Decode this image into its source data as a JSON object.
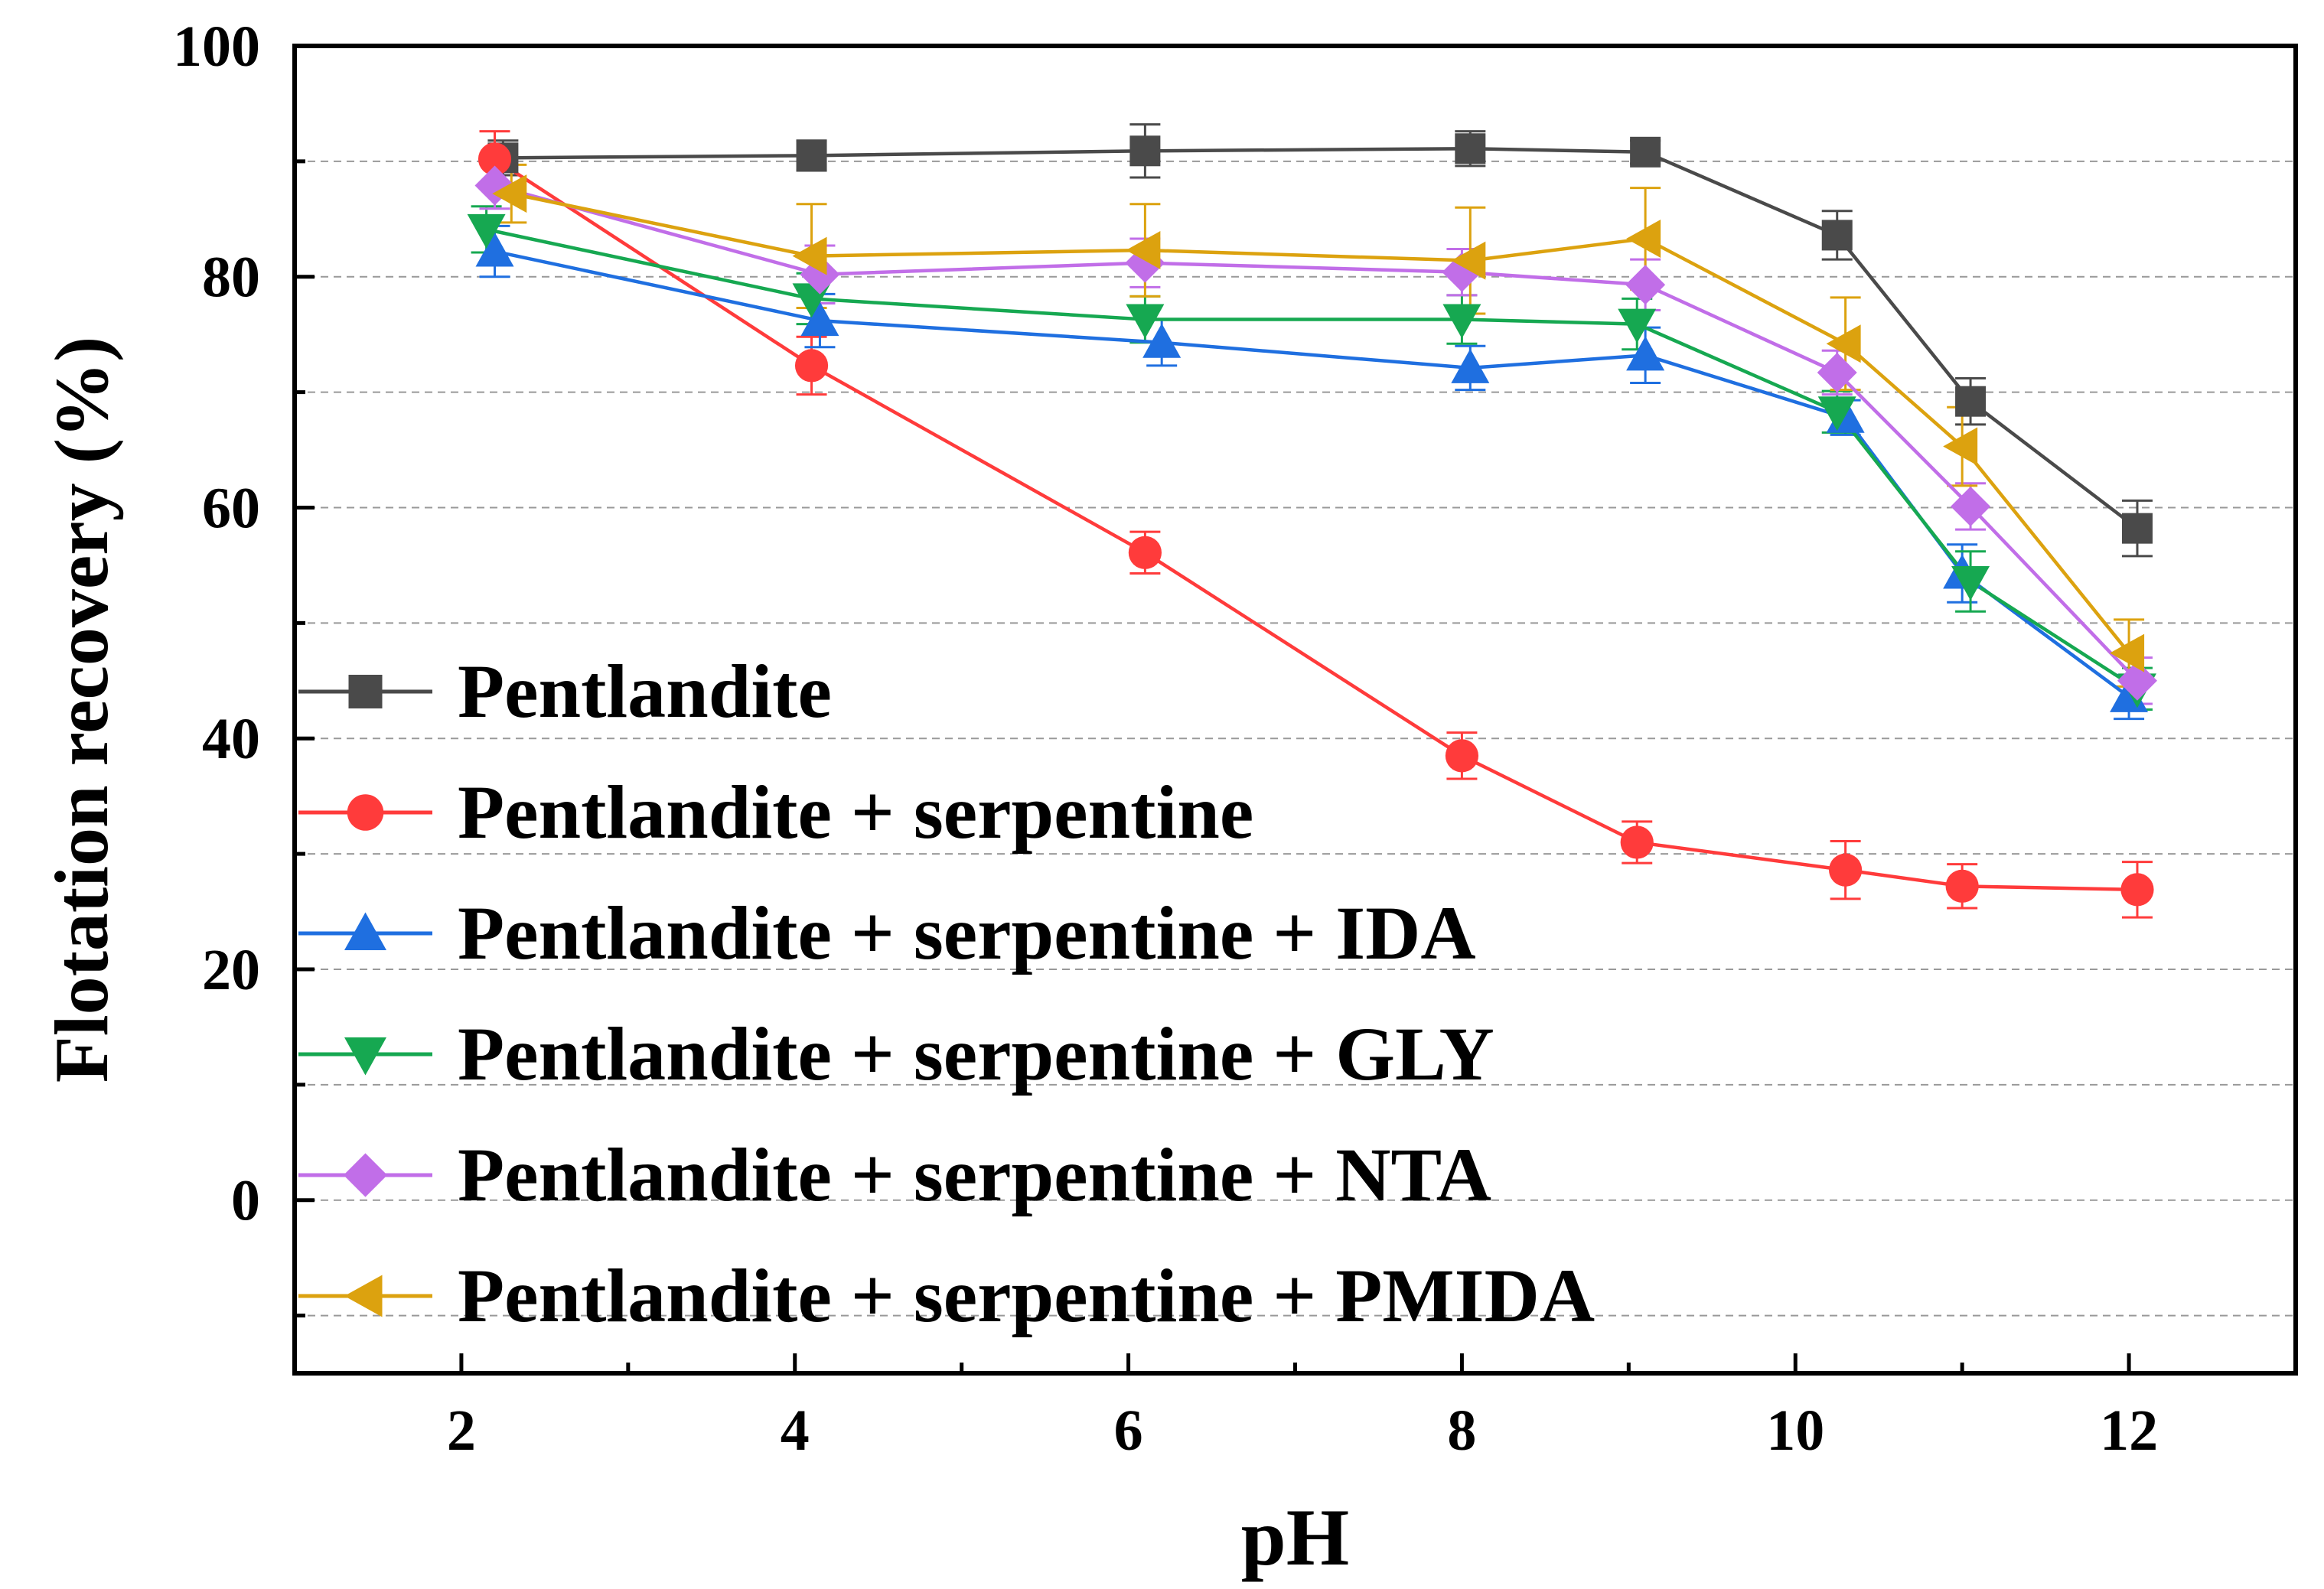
{
  "chart_data": {
    "type": "line",
    "xlabel": "pH",
    "ylabel": "Flotation recovery (%)",
    "xlim": [
      1,
      13
    ],
    "ylim": [
      -15,
      100
    ],
    "xticks": [
      2,
      4,
      6,
      8,
      10,
      12
    ],
    "yticks": [
      0,
      20,
      40,
      60,
      80,
      100
    ],
    "grid": true,
    "legend_position": "lower-left",
    "series": [
      {
        "name": "Pentlandite",
        "color": "#4a4a4a",
        "marker": "square",
        "x": [
          2.25,
          4.1,
          6.1,
          8.05,
          9.1,
          10.25,
          11.05,
          12.05
        ],
        "y": [
          90.3,
          90.5,
          90.9,
          91.1,
          90.8,
          83.6,
          69.2,
          58.2
        ],
        "err": [
          1.5,
          1.3,
          2.3,
          1.5,
          1.0,
          2.1,
          2.0,
          2.4
        ]
      },
      {
        "name": "Pentlandite + serpentine",
        "color": "#ff3b3b",
        "marker": "circle",
        "x": [
          2.2,
          4.1,
          6.1,
          8.0,
          9.05,
          10.3,
          11.0,
          12.05
        ],
        "y": [
          90.2,
          72.3,
          56.1,
          38.5,
          31.0,
          28.6,
          27.2,
          26.9
        ],
        "err": [
          2.4,
          2.5,
          1.8,
          2.0,
          1.8,
          2.5,
          1.9,
          2.4
        ]
      },
      {
        "name": "Pentlandite + serpentine + IDA",
        "color": "#1f6fe0",
        "marker": "triangle-up",
        "x": [
          2.2,
          4.15,
          6.2,
          8.05,
          9.1,
          10.3,
          11.0,
          12.0
        ],
        "y": [
          82.2,
          76.2,
          74.3,
          72.1,
          73.2,
          67.8,
          54.3,
          43.6
        ],
        "err": [
          2.2,
          2.3,
          2.0,
          1.9,
          2.4,
          1.5,
          2.5,
          1.9
        ]
      },
      {
        "name": "Pentlandite + serpentine + GLY",
        "color": "#16a851",
        "marker": "triangle-down",
        "x": [
          2.15,
          4.1,
          6.1,
          8.0,
          9.05,
          10.25,
          11.05,
          12.05
        ],
        "y": [
          84.1,
          78.1,
          76.3,
          76.3,
          75.9,
          68.3,
          53.6,
          44.3
        ],
        "err": [
          2.0,
          2.2,
          2.0,
          2.1,
          2.2,
          1.8,
          2.6,
          1.8
        ]
      },
      {
        "name": "Pentlandite + serpentine + NTA",
        "color": "#c16ee8",
        "marker": "diamond",
        "x": [
          2.2,
          4.15,
          6.1,
          8.0,
          9.1,
          10.25,
          11.05,
          12.05
        ],
        "y": [
          87.9,
          80.2,
          81.2,
          80.4,
          79.3,
          71.7,
          60.1,
          45.0
        ],
        "err": [
          2.0,
          2.5,
          2.1,
          2.0,
          2.2,
          1.9,
          2.0,
          2.0
        ]
      },
      {
        "name": "Pentlandite + serpentine + PMIDA",
        "color": "#dca20f",
        "marker": "triangle-left",
        "x": [
          2.3,
          4.1,
          6.1,
          8.05,
          9.1,
          10.3,
          11.0,
          12.0
        ],
        "y": [
          87.2,
          81.8,
          82.3,
          81.4,
          83.3,
          74.2,
          65.3,
          47.4
        ],
        "err": [
          2.5,
          4.5,
          4.0,
          4.6,
          4.4,
          4.0,
          3.4,
          2.9
        ]
      }
    ]
  }
}
